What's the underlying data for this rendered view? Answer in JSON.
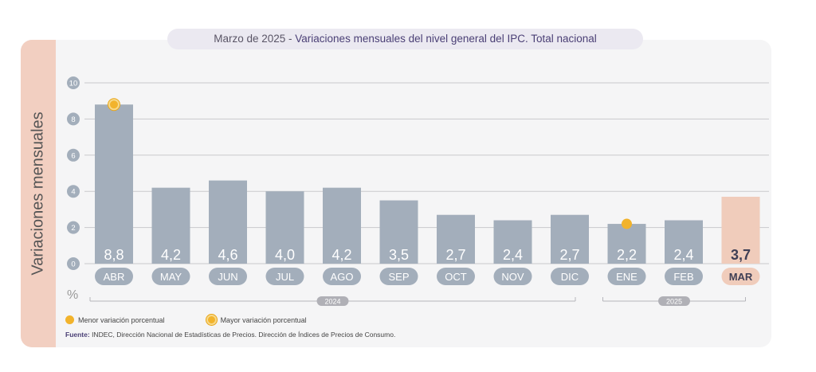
{
  "title": {
    "prefix": "Marzo de 2025 - ",
    "main": "Variaciones mensuales del nivel general del IPC. Total nacional"
  },
  "y_axis_label": "Variaciones mensuales",
  "unit_symbol": "%",
  "legend": {
    "min_label": "Menor variación porcentual",
    "max_label": "Mayor variación porcentual"
  },
  "source": {
    "label": "Fuente:",
    "text": " INDEC, Dirección Nacional de Estadísticas de Precios. Dirección de Índices de Precios de Consumo."
  },
  "colors": {
    "bar": "#a3aebb",
    "bar_highlight": "#f0ccbb",
    "pill": "#a3aebb",
    "pill_highlight": "#f0ccbb",
    "marker": "#f2b32c"
  },
  "chart_data": {
    "type": "bar",
    "categories": [
      "ABR",
      "MAY",
      "JUN",
      "JUL",
      "AGO",
      "SEP",
      "OCT",
      "NOV",
      "DIC",
      "ENE",
      "FEB",
      "MAR"
    ],
    "values": [
      8.8,
      4.2,
      4.6,
      4.0,
      4.2,
      3.5,
      2.7,
      2.4,
      2.7,
      2.2,
      2.4,
      3.7
    ],
    "value_labels": [
      "8,8",
      "4,2",
      "4,6",
      "4,0",
      "4,2",
      "3,5",
      "2,7",
      "2,4",
      "2,7",
      "2,2",
      "2,4",
      "3,7"
    ],
    "ylim": [
      0,
      10
    ],
    "yticks": [
      0,
      2,
      4,
      6,
      8,
      10
    ],
    "grid": true,
    "highlight_index": 11,
    "max_index": 0,
    "min_index": 9,
    "year_groups": [
      {
        "label": "2024",
        "start": 0,
        "end": 8
      },
      {
        "label": "2025",
        "start": 9,
        "end": 11
      }
    ]
  }
}
